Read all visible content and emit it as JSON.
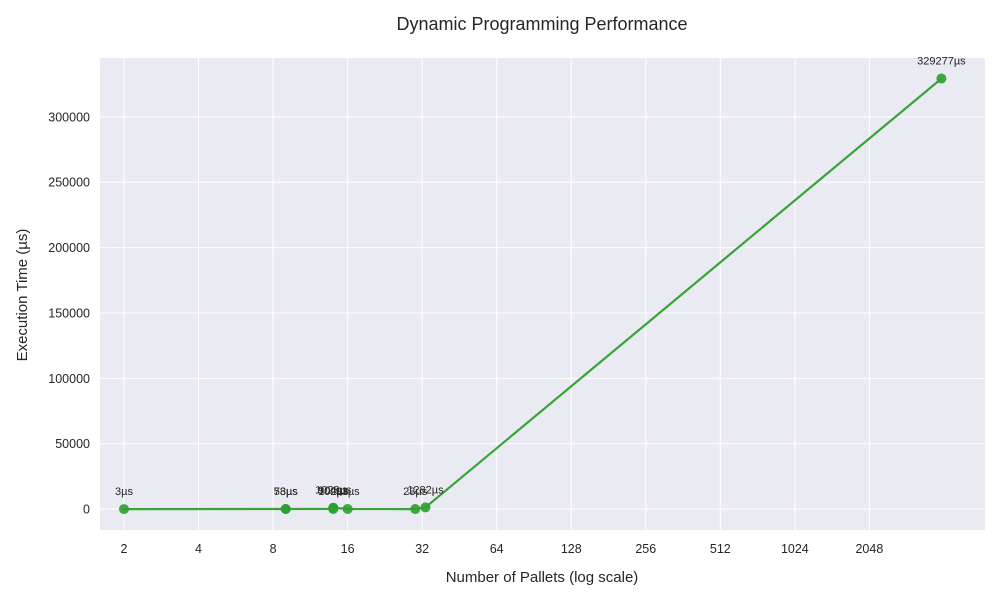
{
  "chart_data": {
    "type": "line",
    "title": "Dynamic Programming Performance",
    "xlabel": "Number of Pallets (log scale)",
    "ylabel": "Execution Time (µs)",
    "x_scale": "log2",
    "xlim": [
      1.6,
      6000
    ],
    "ylim": [
      -16000,
      345000
    ],
    "x_ticks": [
      2,
      4,
      8,
      16,
      32,
      64,
      128,
      256,
      512,
      1024,
      2048
    ],
    "x_tick_labels": [
      "2",
      "4",
      "8",
      "16",
      "32",
      "64",
      "128",
      "256",
      "512",
      "1024",
      "2048"
    ],
    "y_ticks": [
      0,
      50000,
      100000,
      150000,
      200000,
      250000,
      300000
    ],
    "y_tick_labels": [
      "0",
      "50000",
      "100000",
      "150000",
      "200000",
      "250000",
      "300000"
    ],
    "grid": true,
    "series": [
      {
        "color": "#2ca02c",
        "points": [
          {
            "x": 2,
            "y": 3,
            "label": "3µs"
          },
          {
            "x": 9,
            "y": 78,
            "label": "78µs"
          },
          {
            "x": 9,
            "y": 53,
            "label": "53µs"
          },
          {
            "x": 14,
            "y": 1020,
            "label": "1020µs"
          },
          {
            "x": 14,
            "y": 904,
            "label": "904µs"
          },
          {
            "x": 14,
            "y": 102,
            "label": "102µs"
          },
          {
            "x": 16,
            "y": 93,
            "label": "93µs"
          },
          {
            "x": 30,
            "y": 23,
            "label": "23µs"
          },
          {
            "x": 33,
            "y": 1282,
            "label": "1282µs"
          },
          {
            "x": 4000,
            "y": 329277,
            "label": "329277µs"
          }
        ]
      }
    ]
  }
}
